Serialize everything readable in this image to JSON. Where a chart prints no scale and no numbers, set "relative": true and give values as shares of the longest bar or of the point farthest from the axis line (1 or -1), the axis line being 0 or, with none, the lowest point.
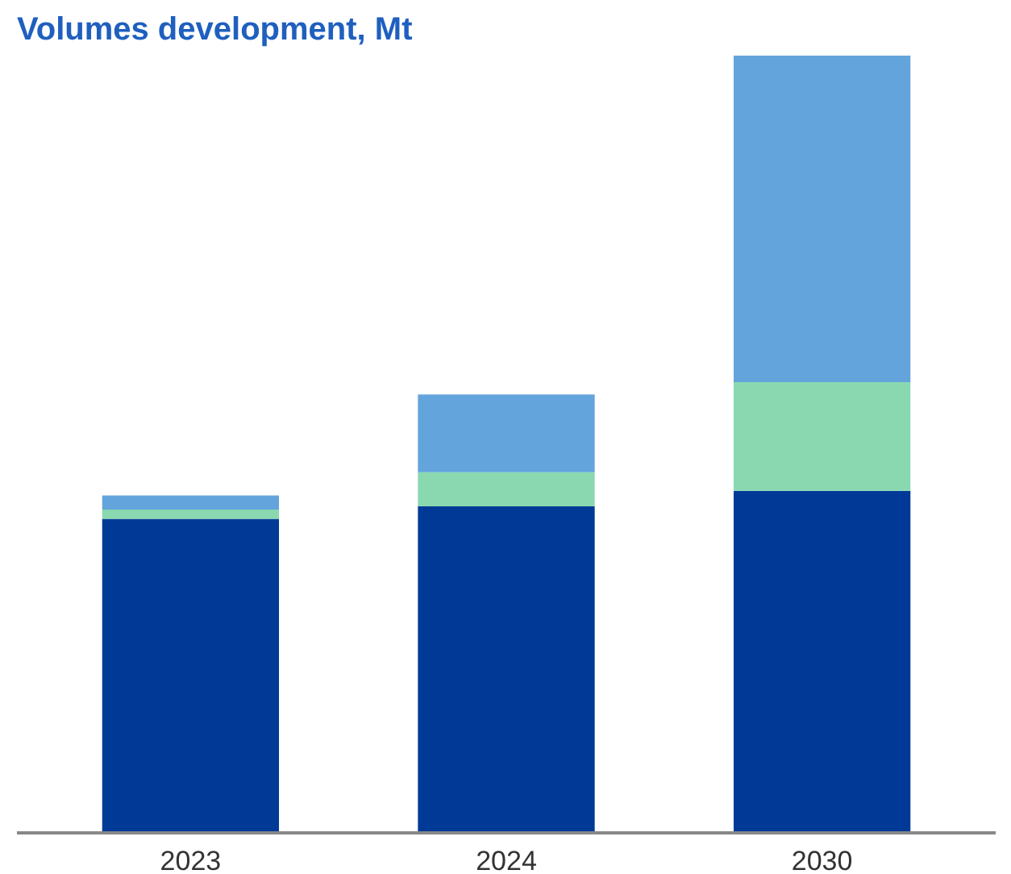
{
  "chart_data": {
    "type": "bar",
    "title": "Volumes development, Mt",
    "categories": [
      "2023",
      "2024",
      "2030"
    ],
    "stacked": true,
    "relative": true,
    "series": [
      {
        "color": "#003a96",
        "values": [
          0.404,
          0.42,
          0.44
        ]
      },
      {
        "color": "#8ad8b0",
        "values": [
          0.012,
          0.044,
          0.14
        ]
      },
      {
        "color": "#64a4dc",
        "values": [
          0.018,
          0.1,
          0.42
        ]
      }
    ]
  }
}
